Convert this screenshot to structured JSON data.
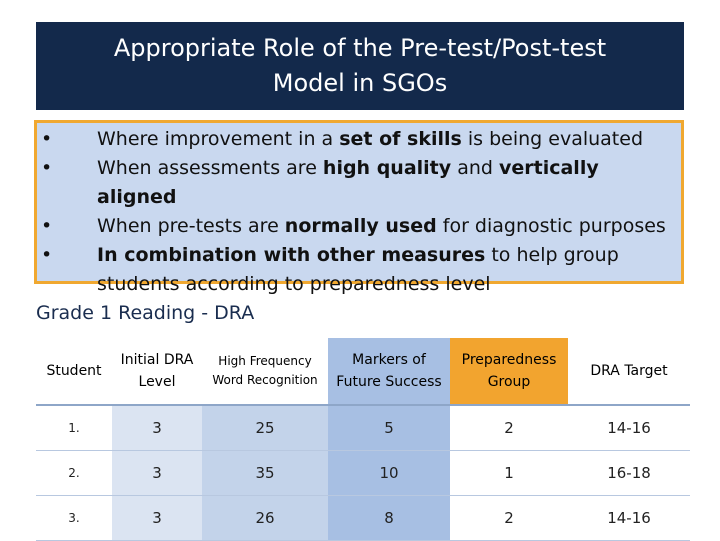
{
  "title": {
    "line1": "Appropriate Role of the Pre-test/Post-test",
    "line2": "Model in SGOs"
  },
  "bullets": [
    {
      "pre": "Where improvement in a ",
      "bold": "set of skills",
      "post": " is being evaluated"
    },
    {
      "pre": "When assessments are ",
      "bold": "high quality",
      "mid": " and ",
      "bold2": "vertically aligned",
      "post": ""
    },
    {
      "pre": "When pre-tests are ",
      "bold": "normally used",
      "post": " for diagnostic purposes"
    },
    {
      "pre": "",
      "bold": "In combination with other measures",
      "post": " to help group students according to preparedness level"
    }
  ],
  "bullet_glyph": "•",
  "table_title": "Grade 1 Reading - DRA",
  "table": {
    "headers": [
      "Student",
      "Initial DRA Level",
      "High Frequency Word Recognition",
      "Markers of Future Success",
      "Preparedness Group",
      "DRA Target"
    ],
    "rows": [
      [
        "1.",
        "3",
        "25",
        "5",
        "2",
        "14-16"
      ],
      [
        "2.",
        "3",
        "35",
        "10",
        "1",
        "16-18"
      ],
      [
        "3.",
        "3",
        "26",
        "8",
        "2",
        "14-16"
      ]
    ]
  },
  "colors": {
    "title_bg": "#13294b",
    "bullet_border": "#f0a830",
    "bullet_bg": "#c9d8ef",
    "prep_header": "#f2a42f"
  }
}
